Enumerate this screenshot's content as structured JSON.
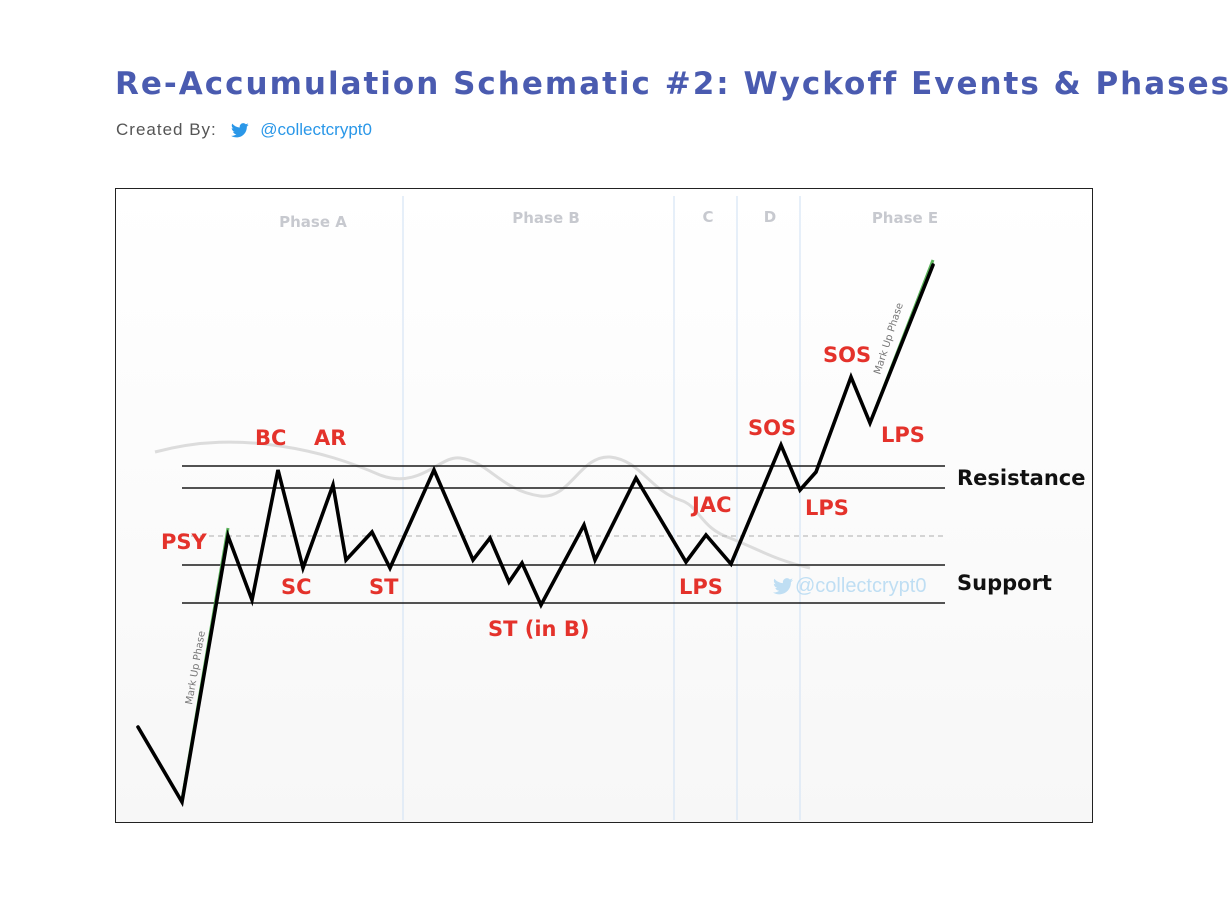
{
  "header": {
    "title": "Re-Accumulation Schematic #2: Wyckoff Events & Phases",
    "created_by_label": "Created By:",
    "handle": "@collectcrypt0"
  },
  "phases": {
    "a": "Phase A",
    "b": "Phase B",
    "c": "C",
    "d": "D",
    "e": "Phase E"
  },
  "levels": {
    "resistance": "Resistance",
    "support": "Support"
  },
  "events": {
    "psy": "PSY",
    "bc": "BC",
    "ar": "AR",
    "sc": "SC",
    "st": "ST",
    "st_in_b": "ST (in B)",
    "lps_c": "LPS",
    "jac": "JAC",
    "sos_d": "SOS",
    "lps_d": "LPS",
    "sos_e": "SOS",
    "lps_e": "LPS"
  },
  "annotations": {
    "markup_left": "Mark Up Phase",
    "markup_right": "Mark Up Phase",
    "watermark": "@collectcrypt0"
  },
  "colors": {
    "title": "#4a5bb0",
    "event_labels": "#e4322b",
    "handle": "#2a97e8",
    "price_line": "#000000"
  },
  "icons": {
    "credit_icon": "twitter-bird-icon",
    "watermark_icon": "twitter-bird-icon"
  }
}
